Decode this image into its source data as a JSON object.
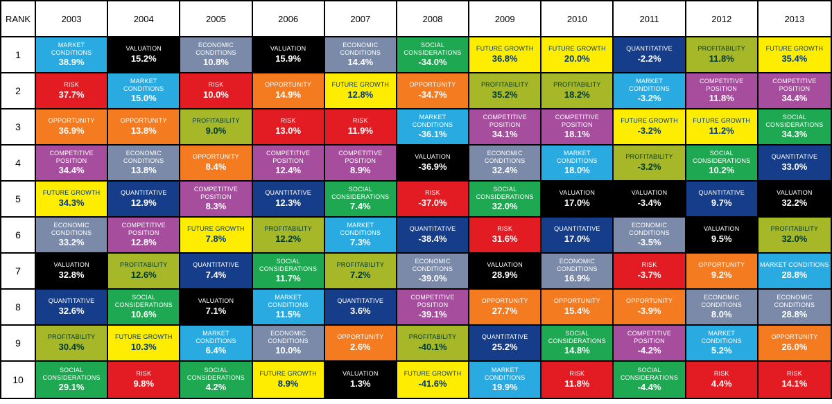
{
  "header_label": "RANK",
  "years": [
    "2003",
    "2004",
    "2005",
    "2006",
    "2007",
    "2008",
    "2009",
    "2010",
    "2011",
    "2012",
    "2013"
  ],
  "ranks": [
    "1",
    "2",
    "3",
    "4",
    "5",
    "6",
    "7",
    "8",
    "9",
    "10"
  ],
  "category_colors": {
    "MARKET CONDITIONS": {
      "bg": "#29abe2",
      "fg": "#ffffff"
    },
    "RISK": {
      "bg": "#e31b23",
      "fg": "#ffffff"
    },
    "OPPORTUNITY": {
      "bg": "#f47b20",
      "fg": "#ffffff"
    },
    "COMPETITIVE POSITION": {
      "bg": "#a64d9e",
      "fg": "#ffffff"
    },
    "FUTURE GROWTH": {
      "bg": "#ffed00",
      "fg": "#003a7a"
    },
    "ECONOMIC CONDITIONS": {
      "bg": "#7a8aa8",
      "fg": "#ffffff"
    },
    "VALUATION": {
      "bg": "#000000",
      "fg": "#ffffff"
    },
    "QUANTITATIVE": {
      "bg": "#153d8a",
      "fg": "#ffffff"
    },
    "PROFITABILITY": {
      "bg": "#a6b727",
      "fg": "#003a2f"
    },
    "SOCIAL CONSIDERATIONS": {
      "bg": "#1ea851",
      "fg": "#ffffff"
    }
  },
  "cells": [
    [
      {
        "cat": "MARKET CONDITIONS",
        "val": "38.9%"
      },
      {
        "cat": "VALUATION",
        "val": "15.2%"
      },
      {
        "cat": "ECONOMIC CONDITIONS",
        "val": "10.8%"
      },
      {
        "cat": "VALUATION",
        "val": "15.9%"
      },
      {
        "cat": "ECONOMIC CONDITIONS",
        "val": "14.4%"
      },
      {
        "cat": "SOCIAL CONSIDERATIONS",
        "val": "-34.0%"
      },
      {
        "cat": "FUTURE GROWTH",
        "val": "36.8%"
      },
      {
        "cat": "FUTURE GROWTH",
        "val": "20.0%"
      },
      {
        "cat": "QUANTITATIVE",
        "val": "-2.2%"
      },
      {
        "cat": "PROFITABILITY",
        "val": "11.8%"
      },
      {
        "cat": "FUTURE GROWTH",
        "val": "35.4%"
      }
    ],
    [
      {
        "cat": "RISK",
        "val": "37.7%"
      },
      {
        "cat": "MARKET CONDITIONS",
        "val": "15.0%"
      },
      {
        "cat": "RISK",
        "val": "10.0%"
      },
      {
        "cat": "OPPORTUNITY",
        "val": "14.9%"
      },
      {
        "cat": "FUTURE GROWTH",
        "val": "12.8%"
      },
      {
        "cat": "OPPORTUNITY",
        "val": "-34.7%"
      },
      {
        "cat": "PROFITABILITY",
        "val": "35.2%"
      },
      {
        "cat": "PROFITABILITY",
        "val": "18.2%"
      },
      {
        "cat": "MARKET CONDITIONS",
        "val": "-3.2%"
      },
      {
        "cat": "COMPETITIVE POSITION",
        "val": "11.8%"
      },
      {
        "cat": "COMPETITIVE POSITION",
        "val": "34.4%"
      }
    ],
    [
      {
        "cat": "OPPORTUNITY",
        "val": "36.9%"
      },
      {
        "cat": "OPPORTUNITY",
        "val": "13.8%"
      },
      {
        "cat": "PROFITABILITY",
        "val": "9.0%"
      },
      {
        "cat": "RISK",
        "val": "13.0%"
      },
      {
        "cat": "RISK",
        "val": "11.9%"
      },
      {
        "cat": "MARKET CONDITIONS",
        "val": "-36.1%"
      },
      {
        "cat": "COMPETITIVE POSITION",
        "val": "34.1%"
      },
      {
        "cat": "COMPETITIVE POSITION",
        "val": "18.1%"
      },
      {
        "cat": "FUTURE GROWTH",
        "val": "-3.2%"
      },
      {
        "cat": "FUTURE GROWTH",
        "val": "11.2%"
      },
      {
        "cat": "SOCIAL CONSIDERATIONS",
        "val": "34.3%"
      }
    ],
    [
      {
        "cat": "COMPETITIVE POSITION",
        "val": "34.4%"
      },
      {
        "cat": "ECONOMIC CONDITIONS",
        "val": "13.8%"
      },
      {
        "cat": "OPPORTUNITY",
        "val": "8.4%"
      },
      {
        "cat": "COMPETITIVE POSITION",
        "val": "12.4%"
      },
      {
        "cat": "COMPETITIVE POSITION",
        "val": "8.9%"
      },
      {
        "cat": "VALUATION",
        "val": "-36.9%"
      },
      {
        "cat": "ECONOMIC CONDITIONS",
        "val": "32.4%"
      },
      {
        "cat": "MARKET CONDITIONS",
        "val": "18.0%"
      },
      {
        "cat": "PROFITABILITY",
        "val": "-3.2%"
      },
      {
        "cat": "SOCIAL CONSIDERATIONS",
        "val": "10.2%"
      },
      {
        "cat": "QUANTITATIVE",
        "val": "33.0%"
      }
    ],
    [
      {
        "cat": "FUTURE GROWTH",
        "val": "34.3%"
      },
      {
        "cat": "QUANTITATIVE",
        "val": "12.9%"
      },
      {
        "cat": "COMPETITIVE POSITION",
        "val": "8.3%"
      },
      {
        "cat": "QUANTITATIVE",
        "val": "12.3%"
      },
      {
        "cat": "SOCIAL CONSIDERATIONS",
        "val": "7.4%"
      },
      {
        "cat": "RISK",
        "val": "-37.0%"
      },
      {
        "cat": "SOCIAL CONSIDERATIONS",
        "val": "32.0%"
      },
      {
        "cat": "VALUATION",
        "val": "17.0%"
      },
      {
        "cat": "VALUATION",
        "val": "-3.4%"
      },
      {
        "cat": "QUANTITATIVE",
        "val": "9.7%"
      },
      {
        "cat": "VALUATION",
        "val": "32.2%"
      }
    ],
    [
      {
        "cat": "ECONOMIC CONDITIONS",
        "val": "33.2%"
      },
      {
        "cat": "COMPETITIVE POSITION",
        "val": "12.8%"
      },
      {
        "cat": "FUTURE GROWTH",
        "val": "7.8%"
      },
      {
        "cat": "PROFITABILITY",
        "val": "12.2%"
      },
      {
        "cat": "MARKET CONDITIONS",
        "val": "7.3%"
      },
      {
        "cat": "QUANTITATIVE",
        "val": "-38.4%"
      },
      {
        "cat": "RISK",
        "val": "31.6%"
      },
      {
        "cat": "QUANTITATIVE",
        "val": "17.0%"
      },
      {
        "cat": "ECONOMIC CONDITIONS",
        "val": "-3.5%"
      },
      {
        "cat": "VALUATION",
        "val": "9.5%"
      },
      {
        "cat": "PROFITABILITY",
        "val": "32.0%"
      }
    ],
    [
      {
        "cat": "VALUATION",
        "val": "32.8%"
      },
      {
        "cat": "PROFITABILITY",
        "val": "12.6%"
      },
      {
        "cat": "QUANTITATIVE",
        "val": "7.4%"
      },
      {
        "cat": "SOCIAL CONSIDERATIONS",
        "val": "11.7%"
      },
      {
        "cat": "PROFITABILITY",
        "val": "7.2%"
      },
      {
        "cat": "ECONOMIC CONDITIONS",
        "val": "-39.0%"
      },
      {
        "cat": "VALUATION",
        "val": "28.9%"
      },
      {
        "cat": "ECONOMIC CONDITIONS",
        "val": "16.9%"
      },
      {
        "cat": "RISK",
        "val": "-3.7%"
      },
      {
        "cat": "OPPORTUNITY",
        "val": "9.2%"
      },
      {
        "cat": "MARKET CONDITIONS",
        "val": "28.8%"
      }
    ],
    [
      {
        "cat": "QUANTITATIVE",
        "val": "32.6%"
      },
      {
        "cat": "SOCIAL CONSIDERATIONS",
        "val": "10.6%"
      },
      {
        "cat": "VALUATION",
        "val": "7.1%"
      },
      {
        "cat": "MARKET CONDITIONS",
        "val": "11.5%"
      },
      {
        "cat": "QUANTITATIVE",
        "val": "3.6%"
      },
      {
        "cat": "COMPETITIVE POSITION",
        "val": "-39.1%"
      },
      {
        "cat": "OPPORTUNITY",
        "val": "27.7%"
      },
      {
        "cat": "OPPORTUNITY",
        "val": "15.4%"
      },
      {
        "cat": "OPPORTUNITY",
        "val": "-3.9%"
      },
      {
        "cat": "ECONOMIC CONDITIONS",
        "val": "8.0%"
      },
      {
        "cat": "ECONOMIC CONDITIONS",
        "val": "28.8%"
      }
    ],
    [
      {
        "cat": "PROFITABILITY",
        "val": "30.4%"
      },
      {
        "cat": "FUTURE GROWTH",
        "val": "10.3%"
      },
      {
        "cat": "MARKET CONDITIONS",
        "val": "6.4%"
      },
      {
        "cat": "ECONOMIC CONDITIONS",
        "val": "10.0%"
      },
      {
        "cat": "OPPORTUNITY",
        "val": "2.6%"
      },
      {
        "cat": "PROFITABILITY",
        "val": "-40.1%"
      },
      {
        "cat": "QUANTITATIVE",
        "val": "25.2%"
      },
      {
        "cat": "SOCIAL CONSIDERATIONS",
        "val": "14.8%"
      },
      {
        "cat": "COMPETITIVE POSITION",
        "val": "-4.2%"
      },
      {
        "cat": "MARKET CONDITIONS",
        "val": "5.2%"
      },
      {
        "cat": "OPPORTUNITY",
        "val": "26.0%"
      }
    ],
    [
      {
        "cat": "SOCIAL CONSIDERATIONS",
        "val": "29.1%"
      },
      {
        "cat": "RISK",
        "val": "9.8%"
      },
      {
        "cat": "SOCIAL CONSIDERATIONS",
        "val": "4.2%"
      },
      {
        "cat": "FUTURE GROWTH",
        "val": "8.9%"
      },
      {
        "cat": "VALUATION",
        "val": "1.3%"
      },
      {
        "cat": "FUTURE GROWTH",
        "val": "-41.6%"
      },
      {
        "cat": "MARKET CONDITIONS",
        "val": "19.9%"
      },
      {
        "cat": "RISK",
        "val": "11.8%"
      },
      {
        "cat": "SOCIAL CONSIDERATIONS",
        "val": "-4.4%"
      },
      {
        "cat": "RISK",
        "val": "4.4%"
      },
      {
        "cat": "RISK",
        "val": "14.1%"
      }
    ]
  ]
}
